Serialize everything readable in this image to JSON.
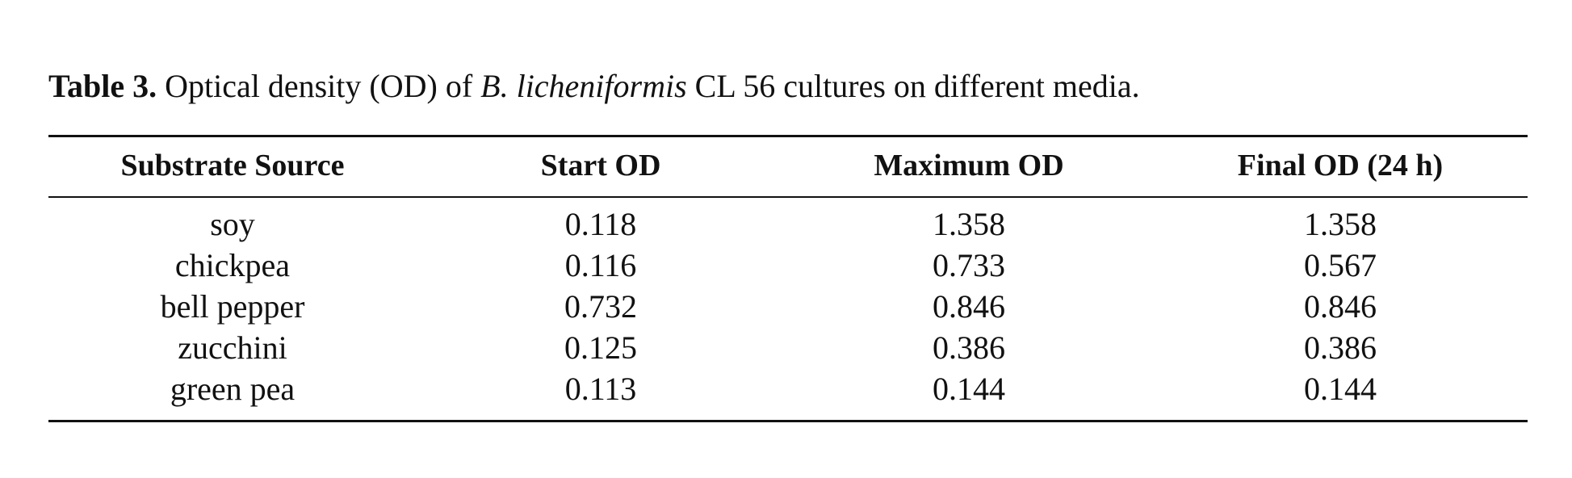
{
  "caption": {
    "label": "Table 3.",
    "text_before": " Optical density (OD) of ",
    "species": "B. licheniformis",
    "text_after": " CL 56 cultures on different media."
  },
  "table": {
    "columns": [
      "Substrate Source",
      "Start OD",
      "Maximum OD",
      "Final OD (24 h)"
    ],
    "rows": [
      [
        "soy",
        "0.118",
        "1.358",
        "1.358"
      ],
      [
        "chickpea",
        "0.116",
        "0.733",
        "0.567"
      ],
      [
        "bell pepper",
        "0.732",
        "0.846",
        "0.846"
      ],
      [
        "zucchini",
        "0.125",
        "0.386",
        "0.386"
      ],
      [
        "green pea",
        "0.113",
        "0.144",
        "0.144"
      ]
    ]
  },
  "chart_data": {
    "type": "table",
    "columns": [
      "Substrate Source",
      "Start OD",
      "Maximum OD",
      "Final OD (24 h)"
    ],
    "rows": [
      [
        "soy",
        0.118,
        1.358,
        1.358
      ],
      [
        "chickpea",
        0.116,
        0.733,
        0.567
      ],
      [
        "bell pepper",
        0.732,
        0.846,
        0.846
      ],
      [
        "zucchini",
        0.125,
        0.386,
        0.386
      ],
      [
        "green pea",
        0.113,
        0.144,
        0.144
      ]
    ]
  }
}
